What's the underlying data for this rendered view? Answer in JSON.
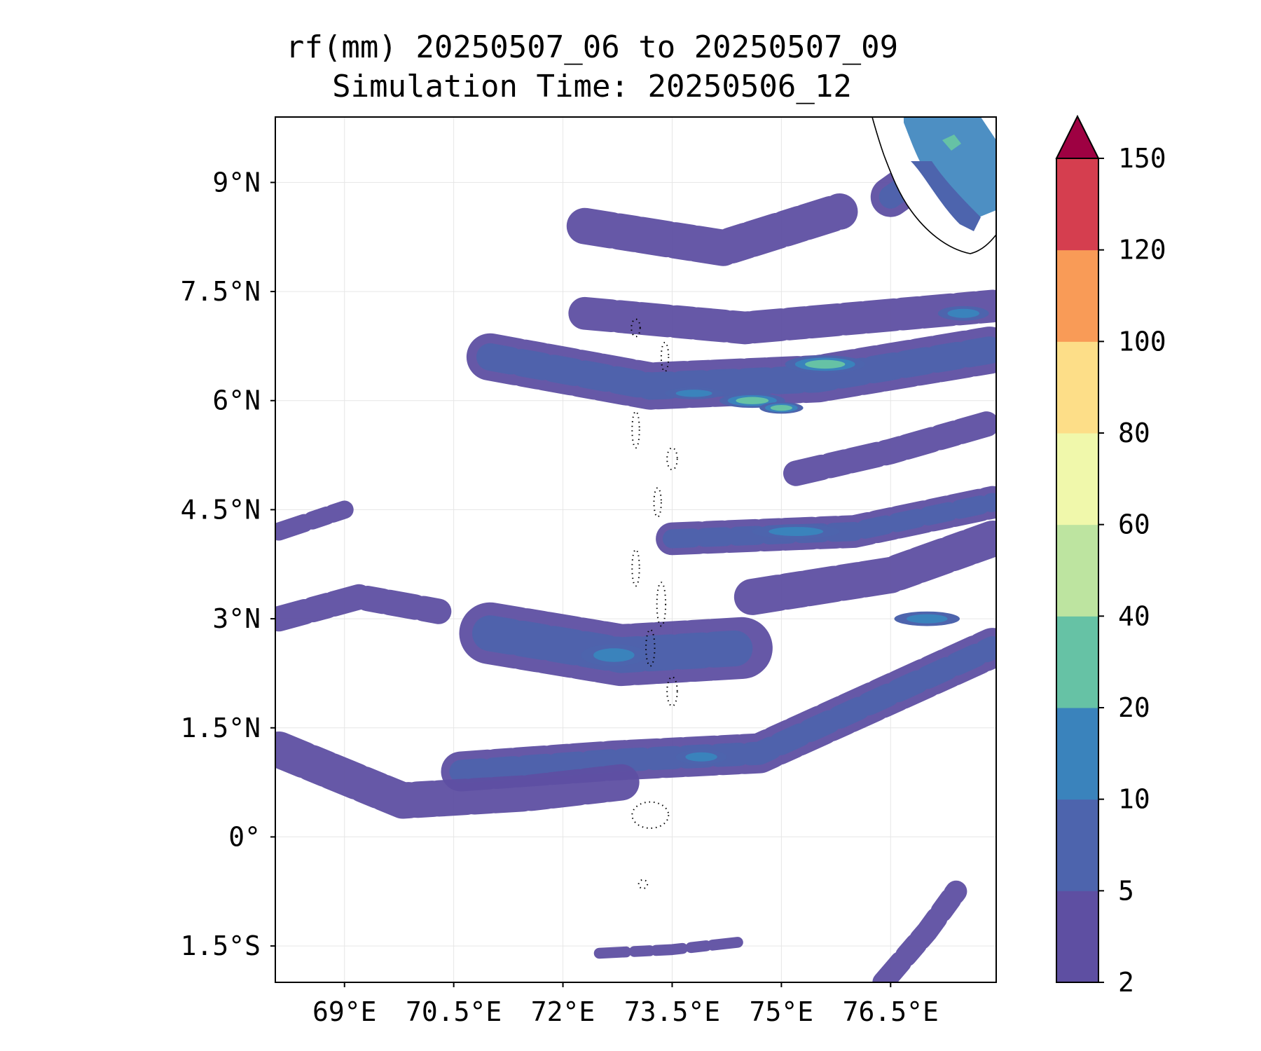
{
  "title": {
    "line1": "rf(mm) 20250507_06 to 20250507_09",
    "line2": "Simulation Time: 20250506_12"
  },
  "map": {
    "lon_range": [
      68.05,
      77.95
    ],
    "lat_range": [
      -2.0,
      9.9
    ],
    "gridlines": true,
    "x_ticks": [
      {
        "value": 69.0,
        "label": "69°E"
      },
      {
        "value": 70.5,
        "label": "70.5°E"
      },
      {
        "value": 72.0,
        "label": "72°E"
      },
      {
        "value": 73.5,
        "label": "73.5°E"
      },
      {
        "value": 75.0,
        "label": "75°E"
      },
      {
        "value": 76.5,
        "label": "76.5°E"
      }
    ],
    "y_ticks": [
      {
        "value": 9.0,
        "label": "9°N"
      },
      {
        "value": 7.5,
        "label": "7.5°N"
      },
      {
        "value": 6.0,
        "label": "6°N"
      },
      {
        "value": 4.5,
        "label": "4.5°N"
      },
      {
        "value": 3.0,
        "label": "3°N"
      },
      {
        "value": 1.5,
        "label": "1.5°N"
      },
      {
        "value": 0.0,
        "label": "0°"
      },
      {
        "value": -1.5,
        "label": "1.5°S"
      }
    ],
    "rain_bands": [
      {
        "lon": [
          70.6,
          72.7,
          74.7,
          77.9
        ],
        "lat": [
          0.9,
          1.05,
          1.15,
          2.6
        ],
        "width": 0.55,
        "level": 1
      },
      {
        "lon": [
          68.1,
          69.8,
          71.5,
          72.8
        ],
        "lat": [
          1.2,
          0.5,
          0.6,
          0.75
        ],
        "width": 0.5,
        "level": 0
      },
      {
        "lon": [
          71.0,
          72.8,
          74.5
        ],
        "lat": [
          2.8,
          2.5,
          2.6
        ],
        "width": 0.85,
        "level": 1
      },
      {
        "lon": [
          73.5,
          76.0,
          77.9
        ],
        "lat": [
          4.1,
          4.2,
          4.6
        ],
        "width": 0.45,
        "level": 1
      },
      {
        "lon": [
          74.6,
          76.5,
          77.9
        ],
        "lat": [
          3.3,
          3.6,
          4.1
        ],
        "width": 0.5,
        "level": 0
      },
      {
        "lon": [
          71.0,
          73.2,
          75.5,
          77.9
        ],
        "lat": [
          6.6,
          6.2,
          6.3,
          6.7
        ],
        "width": 0.65,
        "level": 1
      },
      {
        "lon": [
          72.3,
          74.5,
          77.9
        ],
        "lat": [
          7.2,
          7.0,
          7.3
        ],
        "width": 0.45,
        "level": 0
      },
      {
        "lon": [
          72.3,
          74.2,
          75.8
        ],
        "lat": [
          8.4,
          8.1,
          8.6
        ],
        "width": 0.5,
        "level": 0
      },
      {
        "lon": [
          75.2,
          76.5,
          77.9
        ],
        "lat": [
          5.0,
          5.3,
          5.7
        ],
        "width": 0.35,
        "level": 0
      },
      {
        "lon": [
          76.5,
          77.2,
          77.9
        ],
        "lat": [
          8.8,
          9.3,
          9.7
        ],
        "width": 0.55,
        "level": 1
      },
      {
        "lon": [
          68.1,
          69.2,
          70.3
        ],
        "lat": [
          3.0,
          3.3,
          3.1
        ],
        "width": 0.35,
        "level": 0
      },
      {
        "lon": [
          76.4,
          77.0,
          77.4
        ],
        "lat": [
          -2.0,
          -1.3,
          -0.75
        ],
        "width": 0.3,
        "level": 0
      },
      {
        "lon": [
          72.5,
          73.5,
          74.4
        ],
        "lat": [
          -1.6,
          -1.55,
          -1.45
        ],
        "width": 0.15,
        "level": 0
      },
      {
        "lon": [
          68.1,
          69.0
        ],
        "lat": [
          4.2,
          4.5
        ],
        "width": 0.25,
        "level": 0
      }
    ],
    "rain_cells": [
      {
        "lon": 75.6,
        "lat": 6.5,
        "rx": 0.55,
        "ry": 0.12,
        "level": 3
      },
      {
        "lon": 74.6,
        "lat": 6.0,
        "rx": 0.45,
        "ry": 0.1,
        "level": 3
      },
      {
        "lon": 73.8,
        "lat": 6.1,
        "rx": 0.4,
        "ry": 0.08,
        "level": 2
      },
      {
        "lon": 75.0,
        "lat": 5.9,
        "rx": 0.3,
        "ry": 0.08,
        "level": 3
      },
      {
        "lon": 77.3,
        "lat": 9.5,
        "rx": 0.1,
        "ry": 0.1,
        "level": 4
      },
      {
        "lon": 72.7,
        "lat": 2.5,
        "rx": 0.45,
        "ry": 0.15,
        "level": 2
      },
      {
        "lon": 75.2,
        "lat": 4.2,
        "rx": 0.6,
        "ry": 0.1,
        "level": 2
      },
      {
        "lon": 77.0,
        "lat": 3.0,
        "rx": 0.45,
        "ry": 0.1,
        "level": 2
      },
      {
        "lon": 73.9,
        "lat": 1.1,
        "rx": 0.35,
        "ry": 0.1,
        "level": 2
      },
      {
        "lon": 77.5,
        "lat": 7.2,
        "rx": 0.35,
        "ry": 0.1,
        "level": 2
      }
    ]
  },
  "colorbar": {
    "extend": "max",
    "levels": [
      "2",
      "5",
      "10",
      "20",
      "40",
      "60",
      "80",
      "100",
      "120",
      "150"
    ],
    "colors": [
      "#5e4fa2",
      "#4d64ad",
      "#3a83bc",
      "#66c2a5",
      "#bde4a0",
      "#f0f8ab",
      "#fdde88",
      "#f99b57",
      "#d53e4f"
    ],
    "extend_color": "#9e0142"
  },
  "colors": {
    "background": "#ffffff",
    "coastline": "#000000",
    "gridline": "#e6e6e6"
  }
}
